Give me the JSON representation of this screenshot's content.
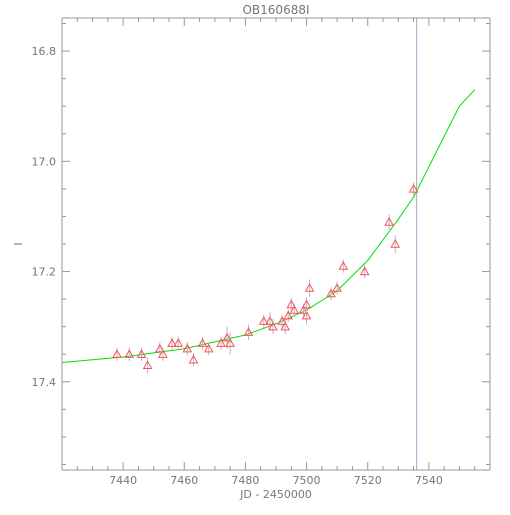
{
  "chart_data": {
    "type": "scatter",
    "title": "OB160688I",
    "xlabel": "JD - 2450000",
    "ylabel": "I",
    "xlim": [
      7420,
      7560
    ],
    "ylim": [
      17.56,
      16.74
    ],
    "y_inverted": true,
    "xticks": [
      7440,
      7460,
      7480,
      7500,
      7520,
      7540
    ],
    "xtick_labels": [
      "7440",
      "7460",
      "7480",
      "7500",
      "7520",
      "7540"
    ],
    "yticks": [
      16.8,
      17.0,
      17.2,
      17.4
    ],
    "ytick_labels": [
      "16.8",
      "17.0",
      "17.2",
      "17.4"
    ],
    "grid": false,
    "vertical_marker_x": 7536,
    "series": [
      {
        "kind": "points",
        "marker": "triangle",
        "color": "#ff5050",
        "errorbar_color": "#b4b4d8",
        "x": [
          7438,
          7442,
          7446,
          7448,
          7452,
          7453,
          7456,
          7458,
          7461,
          7463,
          7466,
          7468,
          7472,
          7474,
          7475,
          7481,
          7486,
          7488,
          7489,
          7492,
          7493,
          7494,
          7495,
          7496,
          7499,
          7500,
          7500,
          7501,
          7508,
          7510,
          7512,
          7519,
          7527,
          7529,
          7535
        ],
        "y": [
          17.35,
          17.35,
          17.35,
          17.37,
          17.34,
          17.35,
          17.33,
          17.33,
          17.34,
          17.36,
          17.33,
          17.34,
          17.33,
          17.32,
          17.33,
          17.31,
          17.29,
          17.29,
          17.3,
          17.29,
          17.3,
          17.28,
          17.26,
          17.27,
          17.27,
          17.28,
          17.26,
          17.23,
          17.24,
          17.23,
          17.19,
          17.2,
          17.11,
          17.15,
          17.05
        ],
        "yerr": [
          0.012,
          0.012,
          0.012,
          0.014,
          0.012,
          0.012,
          0.012,
          0.012,
          0.012,
          0.012,
          0.012,
          0.012,
          0.012,
          0.02,
          0.02,
          0.014,
          0.012,
          0.016,
          0.014,
          0.012,
          0.014,
          0.012,
          0.012,
          0.012,
          0.012,
          0.016,
          0.014,
          0.016,
          0.012,
          0.012,
          0.012,
          0.012,
          0.014,
          0.016,
          0.012
        ]
      },
      {
        "kind": "line",
        "color": "#00e000",
        "x": [
          7420,
          7440,
          7460,
          7480,
          7490,
          7500,
          7510,
          7520,
          7530,
          7535,
          7540,
          7545,
          7550,
          7555
        ],
        "y": [
          17.365,
          17.355,
          17.34,
          17.315,
          17.295,
          17.27,
          17.235,
          17.18,
          17.105,
          17.065,
          17.01,
          16.955,
          16.9,
          16.87
        ]
      }
    ]
  }
}
